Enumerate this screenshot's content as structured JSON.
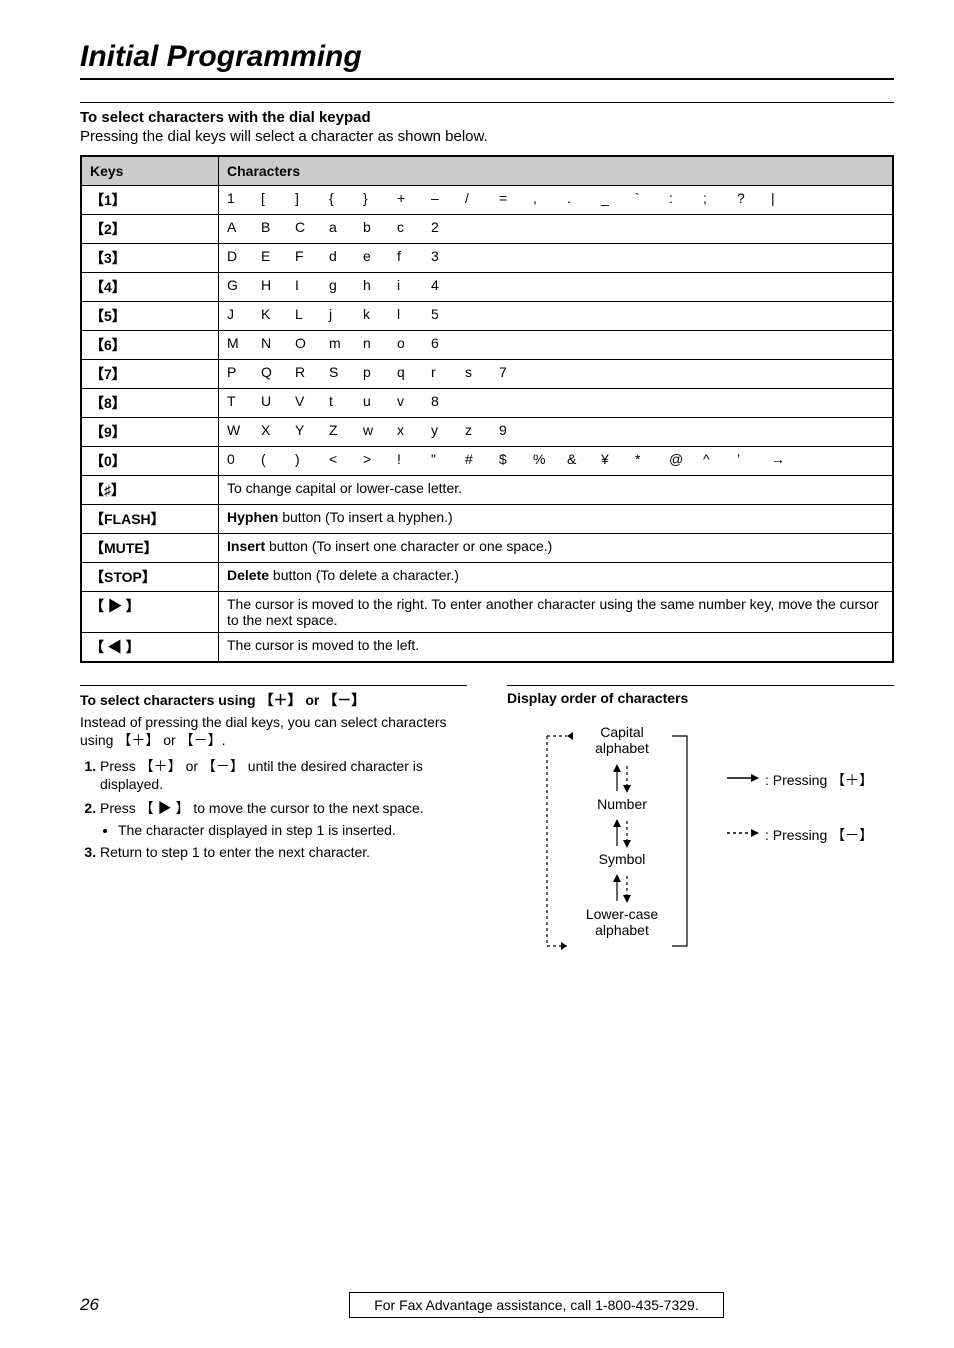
{
  "page_title": "Initial Programming",
  "section": {
    "heading": "To select characters with the dial keypad",
    "intro": "Pressing the dial keys will select a character as shown below."
  },
  "table": {
    "headers": [
      "Keys",
      "Characters"
    ],
    "rows": [
      {
        "key": "【1】",
        "chars": [
          "1",
          "[",
          "]",
          "{",
          "}",
          "+",
          "–",
          "/",
          "=",
          ",",
          ".",
          "_",
          "`",
          ":",
          ";",
          "?",
          "|"
        ]
      },
      {
        "key": "【2】",
        "chars": [
          "A",
          "B",
          "C",
          "a",
          "b",
          "c",
          "2"
        ]
      },
      {
        "key": "【3】",
        "chars": [
          "D",
          "E",
          "F",
          "d",
          "e",
          "f",
          "3"
        ]
      },
      {
        "key": "【4】",
        "chars": [
          "G",
          "H",
          "I",
          "g",
          "h",
          "i",
          "4"
        ]
      },
      {
        "key": "【5】",
        "chars": [
          "J",
          "K",
          "L",
          "j",
          "k",
          "l",
          "5"
        ]
      },
      {
        "key": "【6】",
        "chars": [
          "M",
          "N",
          "O",
          "m",
          "n",
          "o",
          "6"
        ]
      },
      {
        "key": "【7】",
        "chars": [
          "P",
          "Q",
          "R",
          "S",
          "p",
          "q",
          "r",
          "s",
          "7"
        ]
      },
      {
        "key": "【8】",
        "chars": [
          "T",
          "U",
          "V",
          "t",
          "u",
          "v",
          "8"
        ]
      },
      {
        "key": "【9】",
        "chars": [
          "W",
          "X",
          "Y",
          "Z",
          "w",
          "x",
          "y",
          "z",
          "9"
        ]
      },
      {
        "key": "【0】",
        "chars": [
          "0",
          "(",
          ")",
          "<",
          ">",
          "!",
          "\"",
          "#",
          "$",
          "%",
          "&",
          "¥",
          "*",
          "@",
          "^",
          "’",
          "→"
        ]
      }
    ],
    "special_rows": [
      {
        "key": "【♯】",
        "desc": "To change capital or lower-case letter."
      },
      {
        "key": "【FLASH】",
        "desc_bold": "Hyphen",
        "desc_rest": " button (To insert a hyphen.)"
      },
      {
        "key": "【MUTE】",
        "desc_bold": "Insert",
        "desc_rest": " button (To insert one character or one space.)"
      },
      {
        "key": "【STOP】",
        "desc_bold": "Delete",
        "desc_rest": " button (To delete a character.)"
      },
      {
        "key": "【 ▶ 】",
        "desc": "The cursor is moved to the right. To enter another character using the same number key, move the cursor to the next space."
      },
      {
        "key": "【 ◀ 】",
        "desc": "The cursor is moved to the left."
      }
    ]
  },
  "left_col": {
    "heading": "To select characters using 【＋】 or 【－】",
    "intro": "Instead of pressing the dial keys, you can select characters using 【＋】 or 【－】.",
    "steps": [
      {
        "num": "1.",
        "text": "Press 【＋】 or 【－】 until the desired character is displayed."
      },
      {
        "num": "2.",
        "text": "Press 【 ▶ 】 to move the cursor to the next space.",
        "bullet": "The character displayed in step 1 is inserted."
      },
      {
        "num": "3.",
        "text": "Return to step 1 to enter the next character."
      }
    ]
  },
  "right_col": {
    "heading": "Display order of characters",
    "labels": {
      "capital": "Capital\nalphabet",
      "number": "Number",
      "symbol": "Symbol",
      "lower": "Lower-case\nalphabet"
    },
    "press_plus": ": Pressing 【＋】",
    "press_minus": ": Pressing 【－】"
  },
  "footer": {
    "page": "26",
    "text": "For Fax Advantage assistance, call 1-800-435-7329."
  },
  "colors": {
    "bg": "#ffffff",
    "text": "#000000",
    "header_bg": "#cccccc",
    "border": "#000000"
  }
}
